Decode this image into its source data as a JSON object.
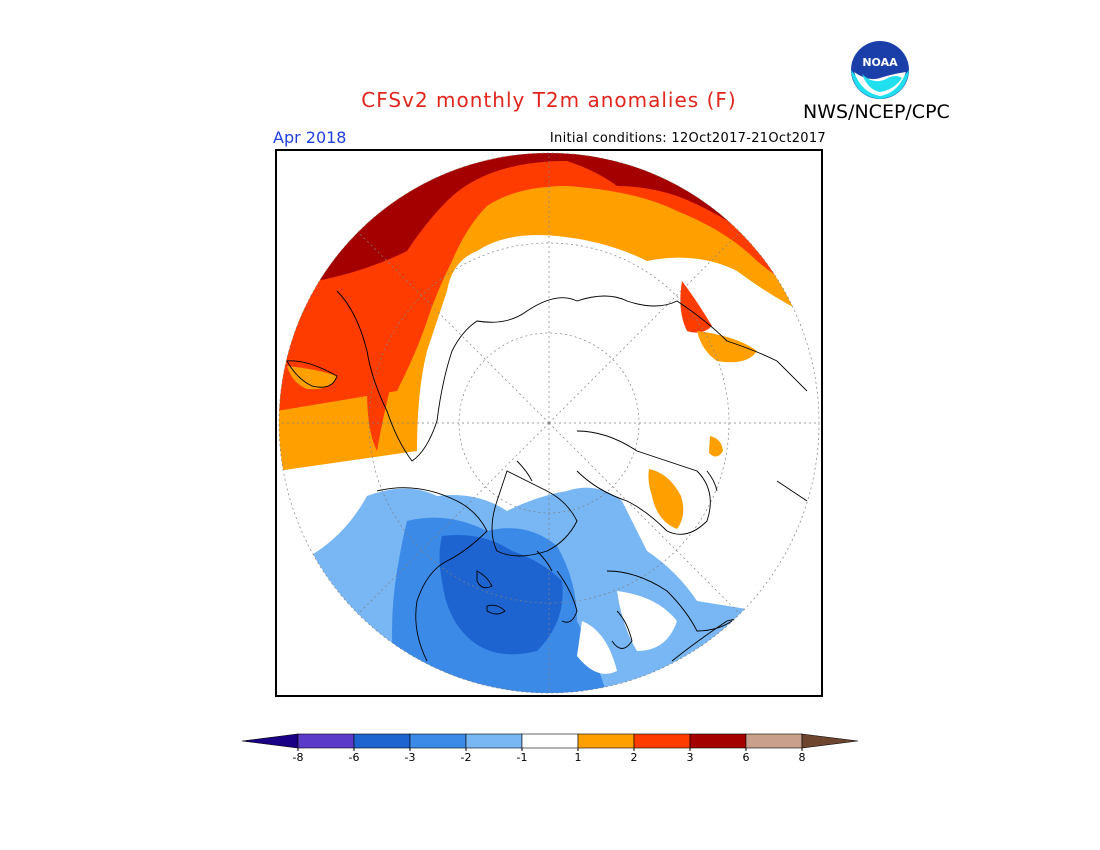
{
  "header": {
    "title": "CFSv2 monthly T2m anomalies (F)",
    "agency": "NWS/NCEP/CPC",
    "logo_text": "NOAA"
  },
  "map": {
    "month_label": "Apr 2018",
    "initial_conditions": "Initial conditions: 12Oct2017-21Oct2017",
    "projection": "north-polar-stereographic"
  },
  "legend": {
    "labels": [
      "-8",
      "-6",
      "-3",
      "-2",
      "-1",
      "1",
      "2",
      "3",
      "6",
      "8"
    ],
    "colors": [
      "#1a0085",
      "#5a3bc9",
      "#1d64d0",
      "#3c8ae8",
      "#78b6f4",
      "#ffffff",
      "#ffa000",
      "#ff3c00",
      "#a50000",
      "#c8a08c",
      "#6e4630"
    ]
  },
  "palette": {
    "strong_warm": "#a50000",
    "warm": "#ff3c00",
    "mild_warm": "#ffa000",
    "mild_cool": "#78b6f4",
    "cool": "#3c8ae8",
    "strong_cool": "#1d64d0"
  }
}
